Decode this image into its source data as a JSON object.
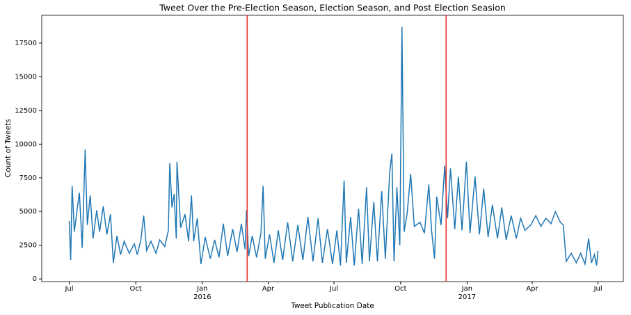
{
  "chart_data": {
    "type": "line",
    "title": "Tweet Over the Pre-Election Season, Election Season, and Post Election Seasion",
    "x_label": "Tweet Publication Date",
    "y_label": "Count of Tweets",
    "x": [
      "2015-07-01",
      "2015-07-03",
      "2015-07-05",
      "2015-07-08",
      "2015-07-12",
      "2015-07-15",
      "2015-07-19",
      "2015-07-23",
      "2015-07-26",
      "2015-07-30",
      "2015-08-03",
      "2015-08-08",
      "2015-08-12",
      "2015-08-17",
      "2015-08-22",
      "2015-08-27",
      "2015-08-31",
      "2015-09-05",
      "2015-09-10",
      "2015-09-15",
      "2015-09-22",
      "2015-09-29",
      "2015-10-03",
      "2015-10-08",
      "2015-10-12",
      "2015-10-16",
      "2015-10-22",
      "2015-10-29",
      "2015-11-03",
      "2015-11-10",
      "2015-11-15",
      "2015-11-17",
      "2015-11-20",
      "2015-11-23",
      "2015-11-26",
      "2015-11-27",
      "2015-12-02",
      "2015-12-08",
      "2015-12-13",
      "2015-12-17",
      "2015-12-20",
      "2015-12-25",
      "2015-12-30",
      "2016-01-05",
      "2016-01-12",
      "2016-01-18",
      "2016-01-24",
      "2016-01-30",
      "2016-02-05",
      "2016-02-12",
      "2016-02-18",
      "2016-02-24",
      "2016-02-29",
      "2016-03-02",
      "2016-03-05",
      "2016-03-10",
      "2016-03-16",
      "2016-03-22",
      "2016-03-25",
      "2016-03-28",
      "2016-04-03",
      "2016-04-09",
      "2016-04-15",
      "2016-04-21",
      "2016-04-28",
      "2016-05-05",
      "2016-05-12",
      "2016-05-19",
      "2016-05-26",
      "2016-06-02",
      "2016-06-09",
      "2016-06-15",
      "2016-06-22",
      "2016-06-29",
      "2016-07-05",
      "2016-07-10",
      "2016-07-15",
      "2016-07-18",
      "2016-07-24",
      "2016-07-29",
      "2016-08-04",
      "2016-08-09",
      "2016-08-15",
      "2016-08-19",
      "2016-08-25",
      "2016-08-30",
      "2016-09-05",
      "2016-09-10",
      "2016-09-16",
      "2016-09-19",
      "2016-09-22",
      "2016-09-26",
      "2016-09-30",
      "2016-10-03",
      "2016-10-06",
      "2016-10-10",
      "2016-10-15",
      "2016-10-20",
      "2016-10-28",
      "2016-11-03",
      "2016-11-09",
      "2016-11-13",
      "2016-11-17",
      "2016-11-20",
      "2016-11-26",
      "2016-12-01",
      "2016-12-05",
      "2016-12-09",
      "2016-12-15",
      "2016-12-20",
      "2016-12-25",
      "2016-12-31",
      "2017-01-05",
      "2017-01-12",
      "2017-01-18",
      "2017-01-24",
      "2017-01-30",
      "2017-02-05",
      "2017-02-12",
      "2017-02-18",
      "2017-02-24",
      "2017-03-03",
      "2017-03-10",
      "2017-03-16",
      "2017-03-22",
      "2017-03-30",
      "2017-04-06",
      "2017-04-13",
      "2017-04-20",
      "2017-04-27",
      "2017-05-03",
      "2017-05-10",
      "2017-05-14",
      "2017-05-18",
      "2017-05-25",
      "2017-06-01",
      "2017-06-07",
      "2017-06-13",
      "2017-06-18",
      "2017-06-22",
      "2017-06-26",
      "2017-06-29",
      "2017-07-01"
    ],
    "series": [
      {
        "color": "#1f77b4",
        "values": [
          4300,
          1400,
          6900,
          3500,
          5200,
          6400,
          2300,
          9600,
          4000,
          6200,
          3000,
          5100,
          3500,
          5400,
          3300,
          4800,
          1200,
          3200,
          1800,
          2800,
          1900,
          2600,
          1800,
          2900,
          4700,
          2100,
          2800,
          1900,
          2900,
          2400,
          3600,
          8600,
          5300,
          6300,
          3000,
          8700,
          3800,
          4800,
          2800,
          6200,
          2800,
          4500,
          1100,
          3100,
          1500,
          2900,
          1600,
          4100,
          1700,
          3700,
          2000,
          4100,
          2200,
          5100,
          1700,
          3200,
          1600,
          3400,
          6900,
          1500,
          3300,
          1200,
          3600,
          1400,
          4200,
          1300,
          4000,
          1400,
          4600,
          1300,
          4500,
          1200,
          3700,
          1100,
          3600,
          1000,
          7300,
          1200,
          4600,
          1000,
          5200,
          1100,
          6800,
          1300,
          5700,
          1300,
          6500,
          1500,
          7900,
          9300,
          1300,
          6800,
          2500,
          18700,
          3500,
          4800,
          7800,
          3900,
          4200,
          3400,
          7000,
          3500,
          1500,
          6100,
          4000,
          8400,
          4500,
          8200,
          3700,
          7600,
          3600,
          8700,
          3400,
          7600,
          3300,
          6700,
          3100,
          5500,
          3000,
          5300,
          2900,
          4700,
          3000,
          4500,
          3600,
          4000,
          4700,
          3900,
          4500,
          4100,
          5000,
          4200,
          4000,
          1300,
          1900,
          1200,
          1900,
          1100,
          3000,
          1200,
          1800,
          1000,
          2100
        ]
      }
    ],
    "vlines": [
      "2016-03-03",
      "2016-12-03"
    ],
    "vline_color": "#e8322d",
    "xlim": [
      "2015-05-24",
      "2017-08-05"
    ],
    "xticks": [
      {
        "value": "2015-07-01",
        "label": "Jul"
      },
      {
        "value": "2015-10-01",
        "label": "Oct"
      },
      {
        "value": "2016-01-01",
        "label": "Jan"
      },
      {
        "value": "2016-04-01",
        "label": "Apr"
      },
      {
        "value": "2016-07-01",
        "label": "Jul"
      },
      {
        "value": "2016-10-01",
        "label": "Oct"
      },
      {
        "value": "2017-01-01",
        "label": "Jan"
      },
      {
        "value": "2017-04-01",
        "label": "Apr"
      },
      {
        "value": "2017-07-01",
        "label": "Jul"
      }
    ],
    "xtick_year_labels": [
      {
        "value": "2016-01-01",
        "label": "2016"
      },
      {
        "value": "2017-01-01",
        "label": "2017"
      }
    ],
    "ylim": [
      -200,
      19560
    ],
    "yticks": [
      0,
      2500,
      5000,
      7500,
      10000,
      12500,
      15000,
      17500
    ]
  }
}
